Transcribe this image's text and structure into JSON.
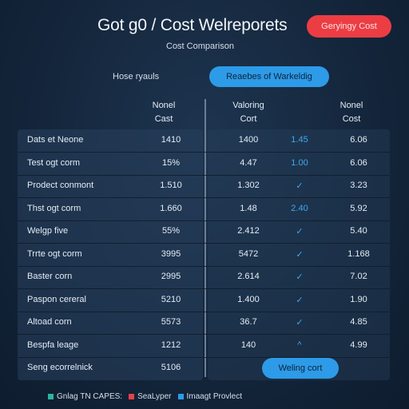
{
  "header": {
    "title": "Got g0 / Cost Welreporets",
    "action_button": "Geryingy Cost",
    "subtitle": "Cost Comparison"
  },
  "filter": {
    "label": "Hose ryauls",
    "pill_button": "Reaebes of Warkeldig"
  },
  "columns": {
    "col1": {
      "line1": "Nonel",
      "line2": "Cast"
    },
    "col2": {
      "line1": "Valoring",
      "line2": "Cort"
    },
    "col3": {
      "line1": "Nonel",
      "line2": "Cost"
    }
  },
  "rows": [
    {
      "name": "Dats et Neone",
      "v1": "1410",
      "v2": "1400",
      "v3": "1.45",
      "v4": "6.06"
    },
    {
      "name": "Test ogt corm",
      "v1": "15%",
      "v2": "4.47",
      "v3": "1.00",
      "v4": "6.06"
    },
    {
      "name": "Prodect conmont",
      "v1": "1.510",
      "v2": "1.302",
      "v3": "✓",
      "v4": "3.23"
    },
    {
      "name": "Thst ogt corm",
      "v1": "1.660",
      "v2": "1.48",
      "v3": "2.40",
      "v4": "5.92"
    },
    {
      "name": "Welgp five",
      "v1": "55%",
      "v2": "2.412",
      "v3": "✓",
      "v4": "5.40"
    },
    {
      "name": "Trrte ogt corm",
      "v1": "3995",
      "v2": "5472",
      "v3": "✓",
      "v4": "1.168"
    },
    {
      "name": "Baster corn",
      "v1": "2995",
      "v2": "2.614",
      "v3": "✓",
      "v4": "7.02"
    },
    {
      "name": "Paspon cereral",
      "v1": "5210",
      "v2": "1.400",
      "v3": "✓",
      "v4": "1.90"
    },
    {
      "name": "Altoad corn",
      "v1": "5573",
      "v2": "36.7",
      "v3": "✓",
      "v4": "4.85"
    },
    {
      "name": "Bespfa leage",
      "v1": "1212",
      "v2": "140",
      "v3": "^",
      "v4": "4.99"
    },
    {
      "name": "Seng ecorrelnick",
      "v1": "5106",
      "v2": "",
      "v3": "",
      "v4": ""
    }
  ],
  "bottom_button": "Weling cort",
  "legend": [
    {
      "label": "Gnlag TN CAPES:",
      "color": "#2fb3a2"
    },
    {
      "label": "SeaLyper",
      "color": "#e8404a"
    },
    {
      "label": "Imaagt Provlect",
      "color": "#2d9be8"
    }
  ]
}
